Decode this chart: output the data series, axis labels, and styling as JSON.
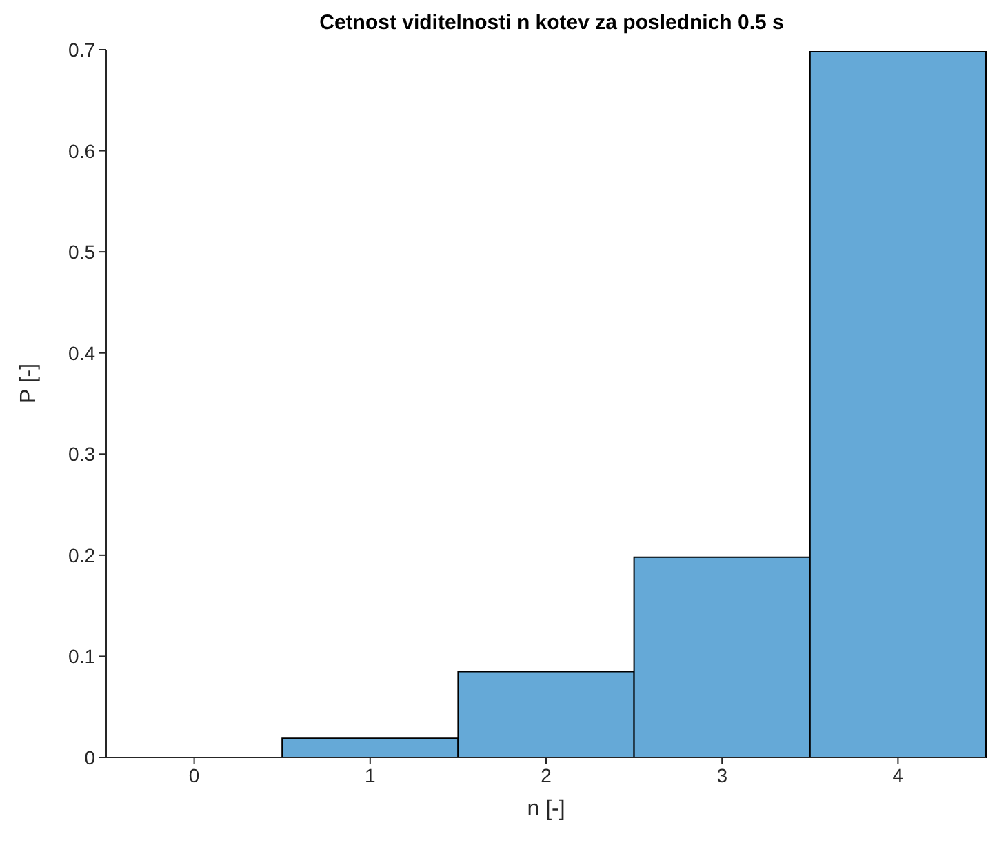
{
  "chart_data": {
    "type": "histogram",
    "title": "Cetnost viditelnosti n kotev za poslednich 0.5 s",
    "xlabel": "n [-]",
    "ylabel": "P [-]",
    "bins": [
      -0.5,
      0.5,
      1.5,
      2.5,
      3.5,
      4.5
    ],
    "values": [
      0,
      0.019,
      0.085,
      0.198,
      0.698
    ],
    "color": "#65a9d7",
    "xlim": [
      -0.5,
      4.5
    ],
    "xticks": [
      0,
      1,
      2,
      3,
      4
    ],
    "ylim": [
      0,
      0.7
    ],
    "yticks": [
      0,
      0.1,
      0.2,
      0.3,
      0.4,
      0.5,
      0.6,
      0.7
    ],
    "grid": false
  }
}
